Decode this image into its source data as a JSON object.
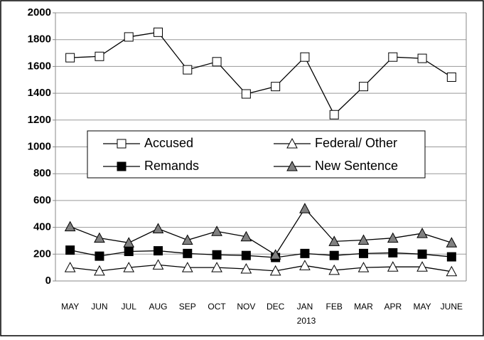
{
  "chart_data": {
    "type": "line",
    "categories": [
      "MAY",
      "JUN",
      "JUL",
      "AUG",
      "SEP",
      "OCT",
      "NOV",
      "DEC",
      "JAN",
      "FEB",
      "MAR",
      "APR",
      "MAY",
      "JUNE"
    ],
    "xlabel": "2013",
    "series": [
      {
        "name": "Accused",
        "marker": "square",
        "color": "#ffffff",
        "values": [
          1665,
          1675,
          1820,
          1855,
          1575,
          1635,
          1395,
          1450,
          1670,
          1240,
          1450,
          1670,
          1660,
          1520
        ]
      },
      {
        "name": "Federal/ Other",
        "marker": "triangle",
        "color": "#ffffff",
        "values": [
          100,
          75,
          100,
          120,
          100,
          100,
          90,
          75,
          115,
          80,
          100,
          105,
          105,
          70
        ]
      },
      {
        "name": "Remands",
        "marker": "square",
        "color": "#000000",
        "values": [
          230,
          185,
          220,
          225,
          205,
          195,
          190,
          175,
          205,
          190,
          205,
          210,
          200,
          180
        ]
      },
      {
        "name": "New Sentence",
        "marker": "triangle",
        "color": "#808080",
        "values": [
          405,
          320,
          285,
          390,
          305,
          370,
          330,
          195,
          540,
          295,
          305,
          320,
          355,
          285
        ]
      }
    ],
    "ylim": [
      0,
      2000
    ],
    "yticks": [
      0,
      200,
      400,
      600,
      800,
      1000,
      1200,
      1400,
      1600,
      1800,
      2000
    ],
    "grid": true
  }
}
